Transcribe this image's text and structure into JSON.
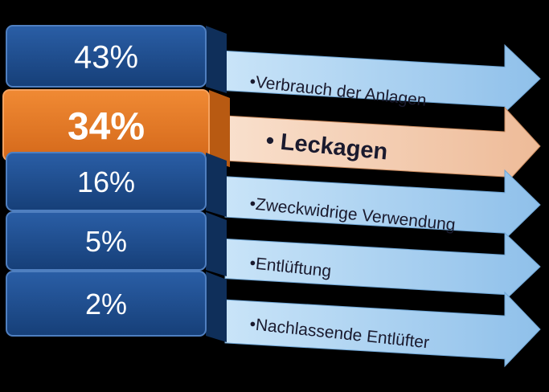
{
  "colors": {
    "background": "#000000",
    "block_blue": "#1f4e8f",
    "block_blue_dark": "#163b6d",
    "block_orange": "#e87722",
    "block_orange_dark": "#b85a12",
    "arrow_blue": "#9cc9ee",
    "arrow_blue_light": "#c4e0f7",
    "arrow_orange": "#f0c4a4",
    "arrow_orange_light": "#f9dfcc",
    "label_text": "#1a1f3a",
    "highlight_text": "#1f3b6d"
  },
  "items": [
    {
      "percent": "43%",
      "label": "Verbrauch der Anlagen",
      "highlight": false
    },
    {
      "percent": "34%",
      "label": "Leckagen",
      "highlight": true
    },
    {
      "percent": "16%",
      "label": "Zweckwidrige Verwendung",
      "highlight": false
    },
    {
      "percent": "5%",
      "label": "Entlüftung",
      "highlight": false
    },
    {
      "percent": "2%",
      "label": "Nachlassende Entlüfter",
      "highlight": false
    }
  ]
}
